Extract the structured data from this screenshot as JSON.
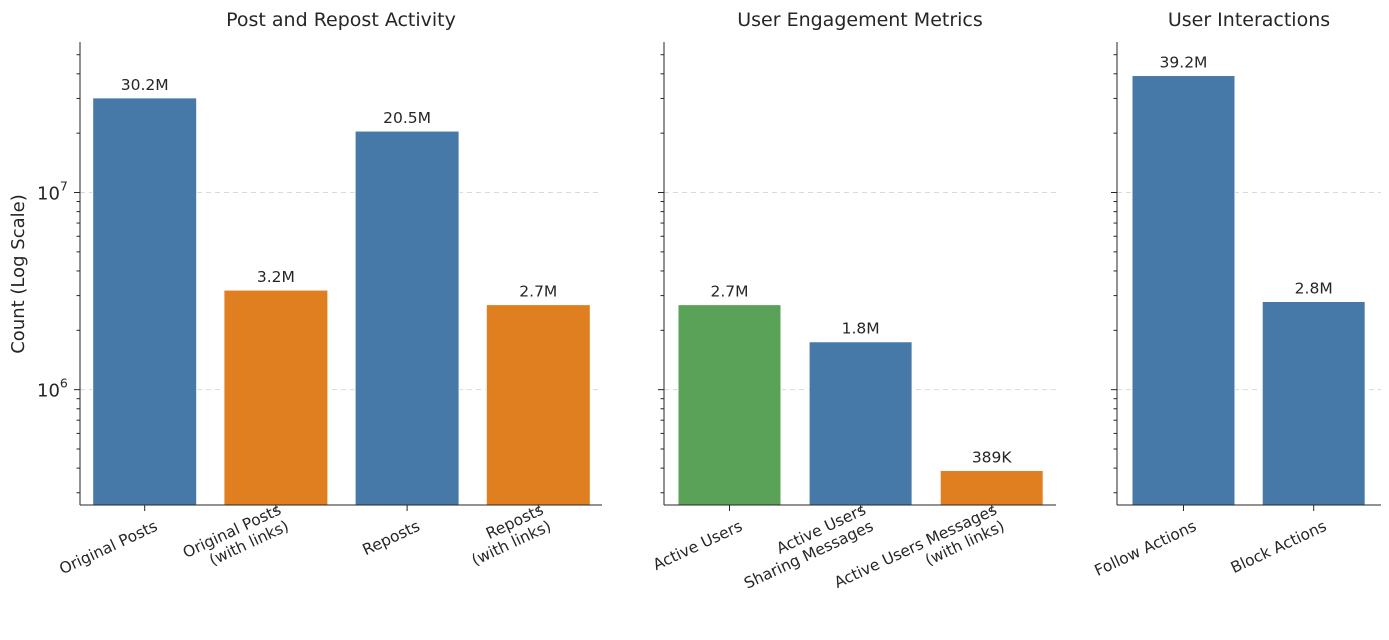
{
  "ylabel": "Count (Log Scale)",
  "ytick_labels": [
    {
      "value": 1000000,
      "base": "10",
      "exp": "6"
    },
    {
      "value": 10000000,
      "base": "10",
      "exp": "7"
    }
  ],
  "colors": {
    "blue": "#4679a8",
    "orange": "#e07f20",
    "green": "#59a257"
  },
  "chart_data": [
    {
      "type": "bar",
      "title": "Post and Repost Activity",
      "yscale": "log",
      "ylim": [
        260000,
        58000000
      ],
      "categories": [
        [
          "Original Posts"
        ],
        [
          "Original Posts",
          "(with links)"
        ],
        [
          "Reposts"
        ],
        [
          "Reposts",
          "(with links)"
        ]
      ],
      "values": [
        30200000,
        3200000,
        20500000,
        2700000
      ],
      "value_labels": [
        "30.2M",
        "3.2M",
        "20.5M",
        "2.7M"
      ],
      "bar_colors": [
        "blue",
        "orange",
        "blue",
        "orange"
      ]
    },
    {
      "type": "bar",
      "title": "User Engagement Metrics",
      "yscale": "log",
      "ylim": [
        260000,
        58000000
      ],
      "categories": [
        [
          "Active Users"
        ],
        [
          "Active Users",
          "Sharing Messages"
        ],
        [
          "Active Users Messages",
          "(with links)"
        ]
      ],
      "values": [
        2700000,
        1750000,
        389000
      ],
      "value_labels": [
        "2.7M",
        "1.8M",
        "389K"
      ],
      "bar_colors": [
        "green",
        "blue",
        "orange"
      ]
    },
    {
      "type": "bar",
      "title": "User Interactions",
      "yscale": "log",
      "ylim": [
        260000,
        58000000
      ],
      "categories": [
        [
          "Follow Actions"
        ],
        [
          "Block Actions"
        ]
      ],
      "values": [
        39200000,
        2800000
      ],
      "value_labels": [
        "39.2M",
        "2.8M"
      ],
      "bar_colors": [
        "blue",
        "blue"
      ]
    }
  ]
}
